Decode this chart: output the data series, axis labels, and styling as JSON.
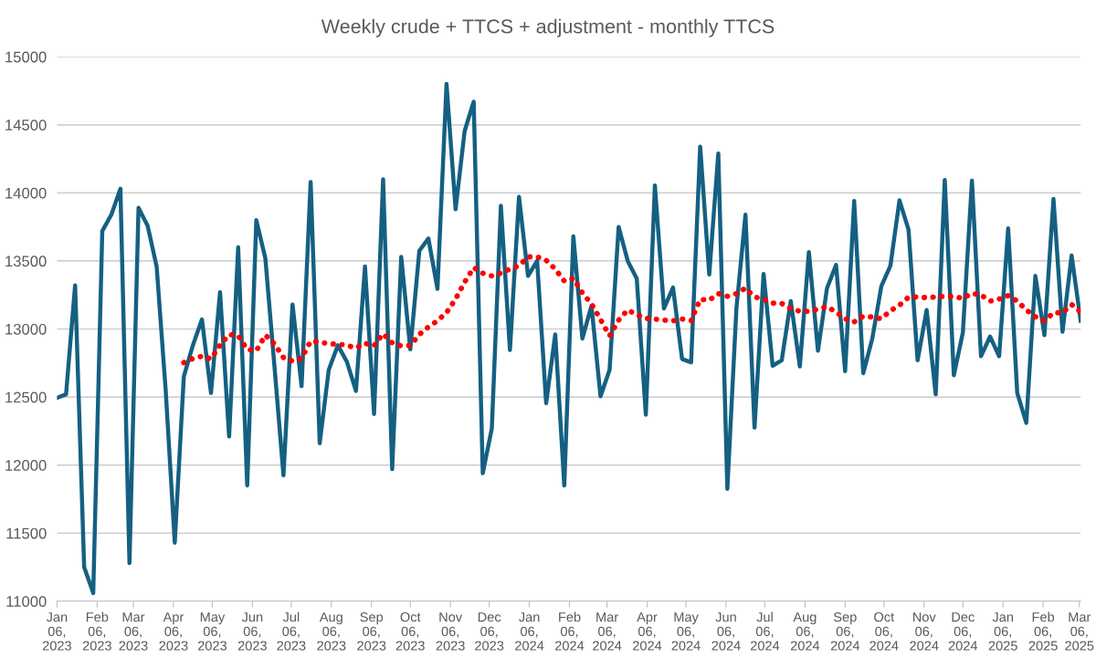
{
  "chart_data": {
    "type": "line",
    "title": "Weekly crude + TTCS + adjustment - monthly TTCS",
    "x": [
      "2023-01-06",
      "2023-01-13",
      "2023-01-20",
      "2023-01-27",
      "2023-02-03",
      "2023-02-10",
      "2023-02-17",
      "2023-02-24",
      "2023-03-03",
      "2023-03-10",
      "2023-03-17",
      "2023-03-24",
      "2023-03-31",
      "2023-04-07",
      "2023-04-14",
      "2023-04-21",
      "2023-04-28",
      "2023-05-05",
      "2023-05-12",
      "2023-05-19",
      "2023-05-26",
      "2023-06-02",
      "2023-06-09",
      "2023-06-16",
      "2023-06-23",
      "2023-06-30",
      "2023-07-07",
      "2023-07-14",
      "2023-07-21",
      "2023-07-28",
      "2023-08-04",
      "2023-08-11",
      "2023-08-18",
      "2023-08-25",
      "2023-09-01",
      "2023-09-08",
      "2023-09-15",
      "2023-09-22",
      "2023-09-29",
      "2023-10-06",
      "2023-10-13",
      "2023-10-20",
      "2023-10-27",
      "2023-11-03",
      "2023-11-10",
      "2023-11-17",
      "2023-11-24",
      "2023-12-01",
      "2023-12-08",
      "2023-12-15",
      "2023-12-22",
      "2023-12-29",
      "2024-01-05",
      "2024-01-12",
      "2024-01-19",
      "2024-01-26",
      "2024-02-02",
      "2024-02-09",
      "2024-02-16",
      "2024-02-23",
      "2024-03-01",
      "2024-03-08",
      "2024-03-15",
      "2024-03-22",
      "2024-03-29",
      "2024-04-05",
      "2024-04-12",
      "2024-04-19",
      "2024-04-26",
      "2024-05-03",
      "2024-05-10",
      "2024-05-17",
      "2024-05-24",
      "2024-05-31",
      "2024-06-07",
      "2024-06-14",
      "2024-06-21",
      "2024-06-28",
      "2024-07-05",
      "2024-07-12",
      "2024-07-19",
      "2024-07-26",
      "2024-08-02",
      "2024-08-09",
      "2024-08-16",
      "2024-08-23",
      "2024-08-30",
      "2024-09-06",
      "2024-09-13",
      "2024-09-20",
      "2024-09-27",
      "2024-10-04",
      "2024-10-11",
      "2024-10-18",
      "2024-10-25",
      "2024-11-01",
      "2024-11-08",
      "2024-11-15",
      "2024-11-22",
      "2024-11-29",
      "2024-12-06",
      "2024-12-13",
      "2024-12-20",
      "2024-12-27",
      "2025-01-03",
      "2025-01-10",
      "2025-01-17",
      "2025-01-24",
      "2025-01-31",
      "2025-02-07",
      "2025-02-14",
      "2025-02-21",
      "2025-02-28",
      "2025-03-07"
    ],
    "series": [
      {
        "color": "#156082",
        "line_style": "solid",
        "values": [
          12494,
          12520,
          13320,
          11250,
          11060,
          13720,
          13840,
          14030,
          11280,
          13890,
          13760,
          13460,
          12550,
          11430,
          12650,
          12880,
          13070,
          12530,
          13270,
          12210,
          13600,
          11850,
          13800,
          13520,
          12730,
          11925,
          13180,
          12580,
          14080,
          12160,
          12700,
          12880,
          12760,
          12545,
          13460,
          12375,
          14100,
          11970,
          13530,
          12850,
          13575,
          13665,
          13295,
          14800,
          13880,
          14455,
          14670,
          11940,
          12270,
          13905,
          12845,
          13970,
          13390,
          13500,
          12455,
          12960,
          11850,
          13680,
          12930,
          13170,
          12505,
          12700,
          13750,
          13500,
          13370,
          12370,
          14055,
          13150,
          13305,
          12780,
          12755,
          14340,
          13400,
          14290,
          11825,
          13150,
          13840,
          12275,
          13405,
          12730,
          12770,
          13205,
          12725,
          13565,
          12840,
          13300,
          13470,
          12690,
          13940,
          12675,
          12930,
          13315,
          13465,
          13945,
          13730,
          12770,
          13140,
          12520,
          14095,
          12660,
          12975,
          14090,
          12800,
          12945,
          12800,
          13740,
          12530,
          12310,
          13390,
          12955,
          13955,
          12980,
          13540,
          13060
        ]
      },
      {
        "color": "#ff0000",
        "line_style": "dotted",
        "values": [
          null,
          null,
          null,
          null,
          null,
          null,
          null,
          null,
          null,
          null,
          null,
          null,
          null,
          null,
          12753,
          12782,
          12800,
          12780,
          12880,
          12960,
          12950,
          12850,
          12840,
          12955,
          12890,
          12790,
          12765,
          12785,
          12910,
          12905,
          12890,
          12890,
          12880,
          12860,
          12895,
          12877,
          12965,
          12898,
          12876,
          12878,
          12960,
          13015,
          13060,
          13120,
          13220,
          13345,
          13451,
          13410,
          13390,
          13410,
          13440,
          13465,
          13530,
          13530,
          13505,
          13440,
          13352,
          13372,
          13265,
          13185,
          13070,
          12950,
          13065,
          13140,
          13105,
          13078,
          13073,
          13065,
          13060,
          13073,
          13062,
          13218,
          13212,
          13260,
          13240,
          13260,
          13300,
          13235,
          13220,
          13190,
          13188,
          13150,
          13130,
          13130,
          13145,
          13165,
          13125,
          13075,
          13052,
          13094,
          13088,
          13075,
          13134,
          13175,
          13233,
          13235,
          13230,
          13235,
          13241,
          13238,
          13225,
          13262,
          13250,
          13205,
          13220,
          13245,
          13205,
          13140,
          13090,
          13060,
          13119,
          13119,
          13180,
          13125
        ]
      }
    ],
    "xlim": [
      "2023-01-06",
      "2025-03-07"
    ],
    "xticks": [
      {
        "value": "2023-01-06",
        "label": "Jan 06, 2023"
      },
      {
        "value": "2023-02-06",
        "label": "Feb 06, 2023"
      },
      {
        "value": "2023-03-06",
        "label": "Mar 06, 2023"
      },
      {
        "value": "2023-04-06",
        "label": "Apr 06, 2023"
      },
      {
        "value": "2023-05-06",
        "label": "May 06, 2023"
      },
      {
        "value": "2023-06-06",
        "label": "Jun 06, 2023"
      },
      {
        "value": "2023-07-06",
        "label": "Jul 06, 2023"
      },
      {
        "value": "2023-08-06",
        "label": "Aug 06, 2023"
      },
      {
        "value": "2023-09-06",
        "label": "Sep 06, 2023"
      },
      {
        "value": "2023-10-06",
        "label": "Oct 06, 2023"
      },
      {
        "value": "2023-11-06",
        "label": "Nov 06, 2023"
      },
      {
        "value": "2023-12-06",
        "label": "Dec 06, 2023"
      },
      {
        "value": "2024-01-06",
        "label": "Jan 06, 2024"
      },
      {
        "value": "2024-02-06",
        "label": "Feb 06, 2024"
      },
      {
        "value": "2024-03-06",
        "label": "Mar 06, 2024"
      },
      {
        "value": "2024-04-06",
        "label": "Apr 06, 2024"
      },
      {
        "value": "2024-05-06",
        "label": "May 06, 2024"
      },
      {
        "value": "2024-06-06",
        "label": "Jun 06, 2024"
      },
      {
        "value": "2024-07-06",
        "label": "Jul 06, 2024"
      },
      {
        "value": "2024-08-06",
        "label": "Aug 06, 2024"
      },
      {
        "value": "2024-09-06",
        "label": "Sep 06, 2024"
      },
      {
        "value": "2024-10-06",
        "label": "Oct 06, 2024"
      },
      {
        "value": "2024-11-06",
        "label": "Nov 06, 2024"
      },
      {
        "value": "2024-12-06",
        "label": "Dec 06, 2024"
      },
      {
        "value": "2025-01-06",
        "label": "Jan 06, 2025"
      },
      {
        "value": "2025-02-06",
        "label": "Feb 06, 2025"
      },
      {
        "value": "2025-03-06",
        "label": "Mar 06, 2025"
      }
    ],
    "ylim": [
      11000,
      15000
    ],
    "yticks": [
      11000,
      11500,
      12000,
      12500,
      13000,
      13500,
      14000,
      14500,
      15000
    ],
    "grid": "y",
    "marker": "none"
  }
}
